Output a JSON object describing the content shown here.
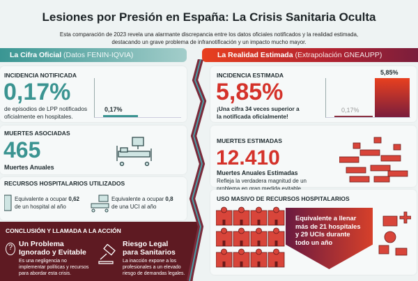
{
  "title": "Lesiones por Presión en España: La Crisis Sanitaria Oculta",
  "subtitle": [
    "Esta comparación de 2023 revela una alarmante discrepancia entre los datos oficiales notificados y la realidad estimada,",
    "destacando un grave problema de infranotificación y un impacto mucho mayor."
  ],
  "official": {
    "header_title": "La Cifra Oficial",
    "header_source": "(Datos FENIN-IQVIA)",
    "incidence_label": "INCIDENCIA NOTIFICADA",
    "incidence_value": "0,17%",
    "incidence_desc": [
      "de episodios de LPP notificados",
      "oficialmente en hospitales."
    ],
    "bar_label": "0,17%",
    "deaths_label": "MUERTES ASOCIADAS",
    "deaths_value": "465",
    "deaths_desc": "Muertes Anuales",
    "resources_label": "RECURSOS HOSPITALARIOS UTILIZADOS",
    "hospital_text": "Equivalente a ocupar ",
    "hospital_value": "0,62",
    "hospital_text2": "de un hospital al año",
    "icu_text": "Equivalente a ocupar ",
    "icu_value": "0,8",
    "icu_text2": "de una UCI al año"
  },
  "estimated": {
    "header_title": "La Realidad Estimada",
    "header_source": "(Extrapolación GNEAUPP)",
    "incidence_label": "INCIDENCIA ESTIMADA",
    "incidence_value": "5,85%",
    "incidence_desc": [
      "¡Una cifra 34 veces superior a",
      "la notificada oficialmente!"
    ],
    "bar_small_label": "0,17%",
    "bar_big_label": "5,85%",
    "deaths_label": "MUERTES ESTIMADAS",
    "deaths_value": "12.410",
    "deaths_desc": "Muertes Anuales Estimadas",
    "deaths_note": [
      "Refleja la verdadera magnitud de un",
      "problema en gran medida evitable."
    ],
    "resources_label": "USO MASIVO DE RECURSOS HOSPITALARIOS",
    "resources_text": [
      "Equivalente a llenar",
      "más de 21 hospitales",
      "y 29 UCIs durante",
      "todo un año"
    ]
  },
  "conclusion": {
    "label": "CONCLUSIÓN Y LLAMADA A LA ACCIÓN",
    "items": [
      {
        "title": [
          "Un Problema",
          "Ignorado y Evitable"
        ],
        "desc": [
          "Es una negligencia no",
          "implementar políticas y recursos",
          "para abordar esta crisis."
        ]
      },
      {
        "title": [
          "Riesgo Legal",
          "para Sanitarios"
        ],
        "desc": [
          "La inacción expone a los",
          "profesionales a un elevado",
          "riesgo de demandas legales."
        ]
      }
    ]
  },
  "chart_data": {
    "type": "bar",
    "categories": [
      "Oficial",
      "Estimada"
    ],
    "values": [
      0.17,
      5.85
    ]
  },
  "colors": {
    "teal": "#3b9491",
    "red": "#d4322a",
    "maroon": "#5e1a22"
  }
}
